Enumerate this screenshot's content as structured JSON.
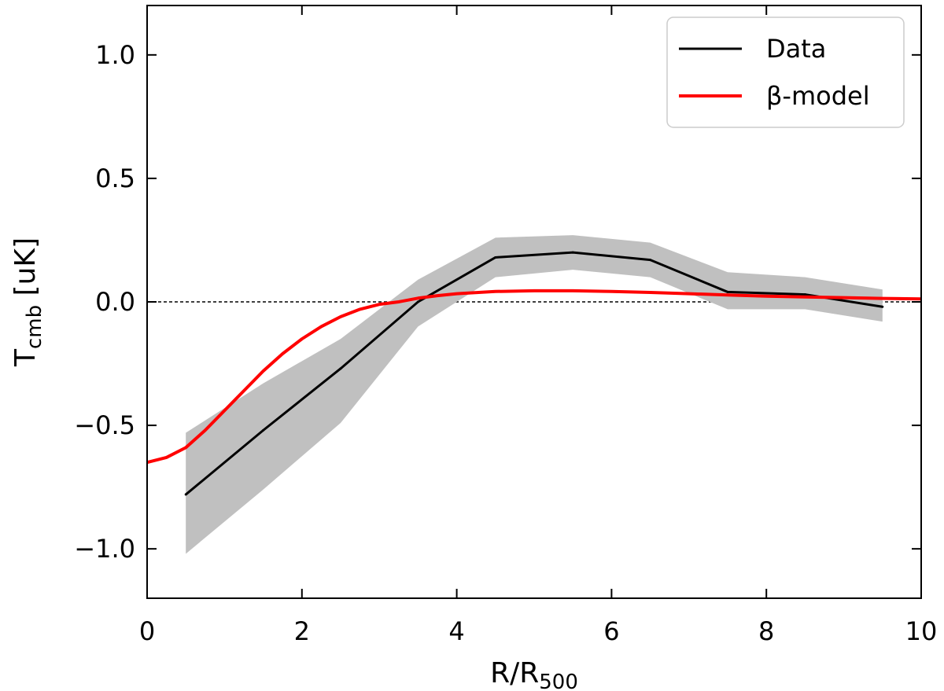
{
  "chart_data": {
    "type": "line",
    "xlabel": "R/R",
    "xlabel_sub": "500",
    "ylabel": "T",
    "ylabel_sub": "cmb",
    "ylabel_unit": "[uK]",
    "xlim": [
      0,
      10
    ],
    "ylim": [
      -1.2,
      1.2
    ],
    "x_ticks": [
      0,
      2,
      4,
      6,
      8,
      10
    ],
    "x_tick_labels": [
      "0",
      "2",
      "4",
      "6",
      "8",
      "10"
    ],
    "y_ticks": [
      -1.0,
      -0.5,
      0.0,
      0.5,
      1.0
    ],
    "y_tick_labels": [
      "−1.0",
      "−0.5",
      "0.0",
      "0.5",
      "1.0"
    ],
    "grid": false,
    "legend_position": "top-right",
    "reference_line": {
      "y": 0.0,
      "style": "dashed",
      "color": "#000000"
    },
    "series": [
      {
        "name": "Data",
        "color": "#000000",
        "x": [
          0.5,
          1.5,
          2.5,
          3.5,
          4.5,
          5.5,
          6.5,
          7.5,
          8.5,
          9.5
        ],
        "y": [
          -0.78,
          -0.52,
          -0.27,
          0.0,
          0.18,
          0.2,
          0.17,
          0.04,
          0.03,
          -0.02
        ],
        "band_upper": [
          -0.53,
          -0.33,
          -0.15,
          0.09,
          0.26,
          0.27,
          0.24,
          0.12,
          0.1,
          0.05
        ],
        "band_lower": [
          -1.02,
          -0.76,
          -0.49,
          -0.1,
          0.1,
          0.13,
          0.1,
          -0.03,
          -0.03,
          -0.08
        ],
        "band_color": "#c0c0c0"
      },
      {
        "name": "β-model",
        "color": "#ff0000",
        "x": [
          0.0,
          0.25,
          0.5,
          0.75,
          1.0,
          1.25,
          1.5,
          1.75,
          2.0,
          2.25,
          2.5,
          2.75,
          3.0,
          3.25,
          3.5,
          3.75,
          4.0,
          4.5,
          5.0,
          5.5,
          6.0,
          6.5,
          7.0,
          7.5,
          8.0,
          8.5,
          9.0,
          9.5,
          10.0
        ],
        "y": [
          -0.65,
          -0.63,
          -0.59,
          -0.52,
          -0.44,
          -0.36,
          -0.28,
          -0.21,
          -0.15,
          -0.1,
          -0.06,
          -0.03,
          -0.01,
          0.0,
          0.015,
          0.025,
          0.033,
          0.042,
          0.045,
          0.045,
          0.042,
          0.038,
          0.033,
          0.028,
          0.023,
          0.02,
          0.017,
          0.014,
          0.012
        ]
      }
    ]
  }
}
